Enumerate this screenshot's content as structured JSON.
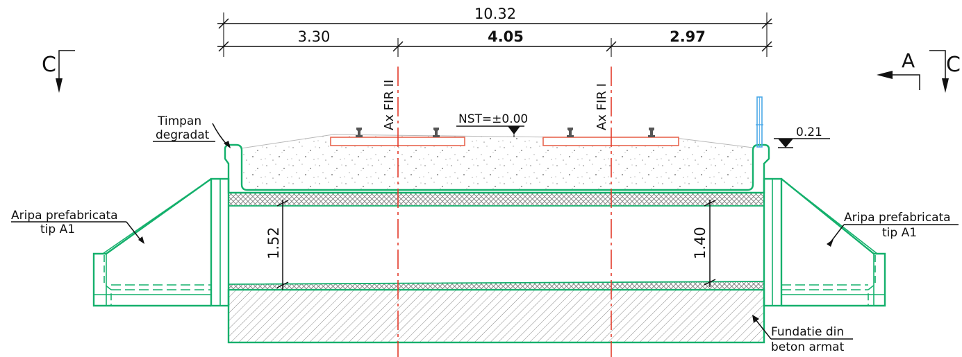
{
  "dimensions": {
    "total": "10.32",
    "left": "3.30",
    "middle": "4.05",
    "right": "2.97",
    "height_left": "1.52",
    "height_right": "1.40",
    "level_offset": "0.21"
  },
  "level": {
    "nst": "NST=±0.00"
  },
  "axes": {
    "track_2": "Ax FIR II",
    "track_1": "Ax FIR I"
  },
  "section_marks": {
    "left": "C",
    "right": "C",
    "view": "A"
  },
  "notes": {
    "timpan_line1": "Timpan",
    "timpan_line2": "degradat",
    "wing_left_line1": "Aripa prefabricata",
    "wing_left_line2": "tip A1",
    "wing_right_line1": "Aripa prefabricata",
    "wing_right_line2": "tip A1",
    "foundation_line1": "Fundatie din",
    "foundation_line2": "beton armat"
  },
  "colors": {
    "structure": "#14b06c",
    "axis": "#e23a2a",
    "sleeper": "#e8664f",
    "railing": "#4aa8e8"
  }
}
